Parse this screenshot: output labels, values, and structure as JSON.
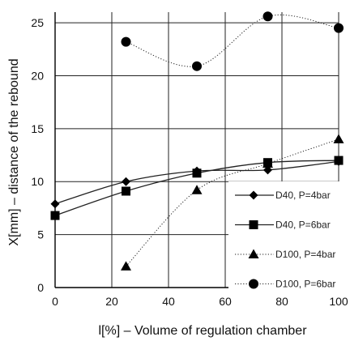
{
  "chart_data": {
    "type": "line",
    "xlabel": "l[%] – Volume of regulation chamber",
    "ylabel": "X[mm] – distance of the rebound",
    "xlim": [
      0,
      100
    ],
    "ylim": [
      0,
      26
    ],
    "x_ticks": [
      0,
      20,
      40,
      60,
      80,
      100
    ],
    "y_ticks": [
      0,
      5,
      10,
      15,
      20,
      25
    ],
    "x_tick_labels": [
      "0",
      "20",
      "40",
      "60",
      "80",
      "100"
    ],
    "y_tick_labels": [
      "0",
      "5",
      "10",
      "15",
      "20",
      "25"
    ],
    "grid": true,
    "legend_position": "bottom-right",
    "series": [
      {
        "name": "D40, P=4bar",
        "marker": "diamond",
        "line": "solid",
        "x": [
          0,
          25,
          50,
          75,
          100
        ],
        "y": [
          7.9,
          10.0,
          11.0,
          11.1,
          11.9
        ]
      },
      {
        "name": "D40, P=6bar",
        "marker": "square",
        "line": "solid",
        "x": [
          0,
          25,
          50,
          75,
          100
        ],
        "y": [
          6.8,
          9.1,
          10.8,
          11.8,
          12.0
        ]
      },
      {
        "name": "D100, P=4bar",
        "marker": "triangle",
        "line": "dotted",
        "x": [
          25,
          50,
          75,
          100
        ],
        "y": [
          2.0,
          9.2,
          11.7,
          14.0
        ]
      },
      {
        "name": "D100, P=6bar",
        "marker": "circle",
        "line": "dotted",
        "x": [
          25,
          50,
          75,
          100
        ],
        "y": [
          23.2,
          20.9,
          25.6,
          24.5
        ]
      }
    ]
  }
}
